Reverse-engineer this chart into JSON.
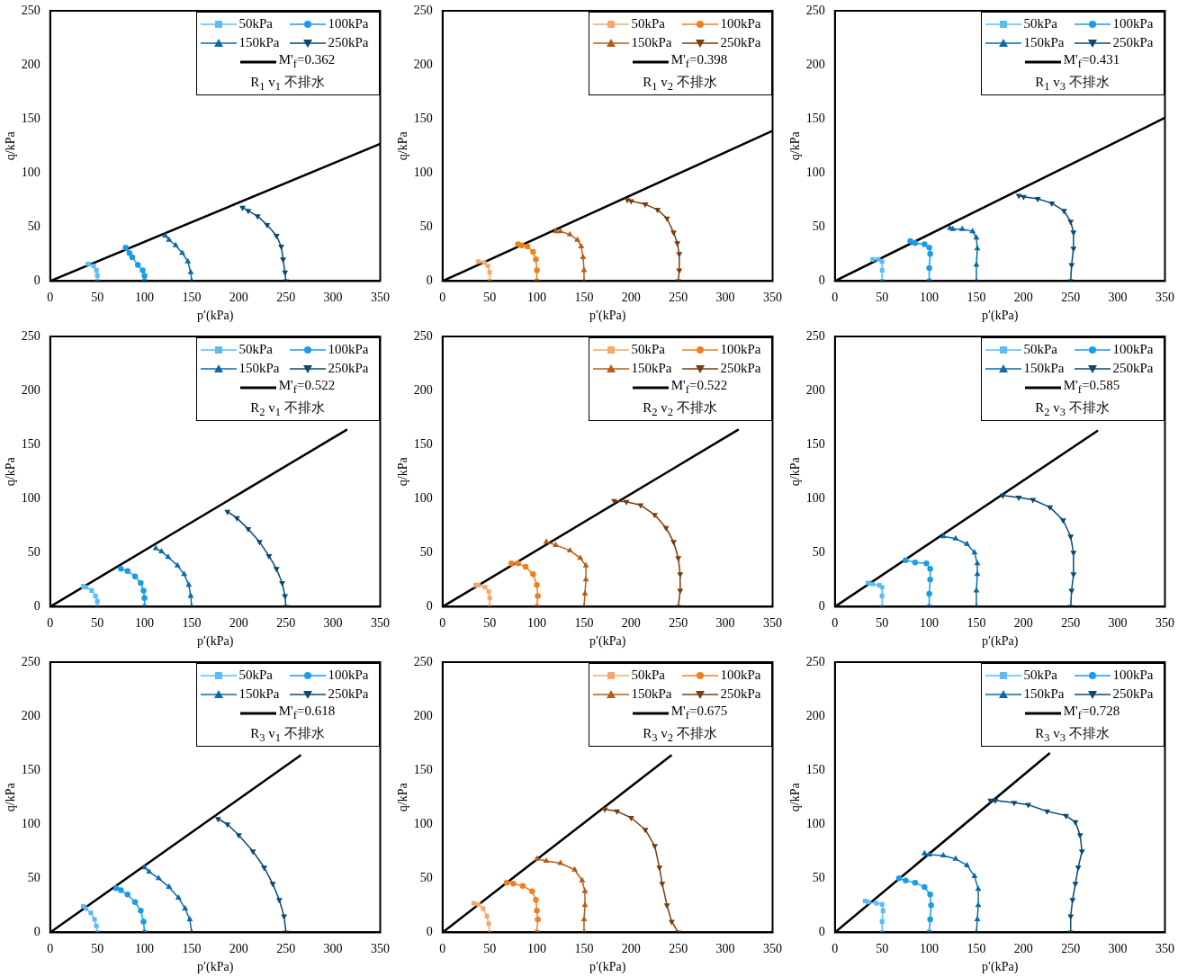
{
  "chart_data": [
    {
      "type": "line",
      "xlabel": "p′(kPa)",
      "ylabel": "q/kPa",
      "xlim": [
        0,
        350
      ],
      "xticks": [
        0,
        50,
        100,
        150,
        200,
        250,
        300,
        350
      ],
      "ylim": [
        0,
        250
      ],
      "yticks": [
        0,
        50,
        100,
        150,
        200,
        250
      ],
      "grid": false,
      "legend": "top right",
      "legend_title": "R$_{1}$  v$_{1}$  不排水",
      "series": [
        {
          "name": "50kPa",
          "color": "#5bbcf7",
          "marker": "square",
          "x": [
            50,
            50,
            49,
            46,
            40
          ],
          "values": [
            0,
            5,
            10,
            14,
            16
          ]
        },
        {
          "name": "100kPa",
          "color": "#1a9ce8",
          "marker": "circle",
          "x": [
            100,
            100,
            98,
            93,
            87,
            84,
            80
          ],
          "values": [
            0,
            5,
            10,
            15,
            22,
            26,
            31
          ]
        },
        {
          "name": "150kPa",
          "color": "#0b6aa8",
          "marker": "triangle",
          "x": [
            150,
            149,
            146,
            140,
            133,
            126,
            122
          ],
          "values": [
            0,
            8,
            18,
            26,
            33,
            38,
            42
          ]
        },
        {
          "name": "250kPa",
          "color": "#0a4a75",
          "marker": "triangle-down",
          "x": [
            250,
            249,
            247,
            245,
            240,
            230,
            220,
            210,
            204
          ],
          "values": [
            0,
            8,
            20,
            32,
            42,
            52,
            60,
            65,
            68
          ]
        },
        {
          "name": "M'$_{f}$=0.362",
          "color": "#000000",
          "marker": "none",
          "x": [
            0,
            350
          ],
          "values": [
            0,
            127
          ]
        }
      ]
    },
    {
      "type": "line",
      "xlabel": "p′(kPa)",
      "ylabel": "q/kPa",
      "xlim": [
        0,
        350
      ],
      "xticks": [
        0,
        50,
        100,
        150,
        200,
        250,
        300,
        350
      ],
      "ylim": [
        0,
        250
      ],
      "yticks": [
        0,
        50,
        100,
        150,
        200,
        250
      ],
      "grid": false,
      "legend": "top right",
      "legend_title": "R$_{1}$  v$_{2}$  不排水",
      "series": [
        {
          "name": "50kPa",
          "color": "#f5a86a",
          "marker": "square",
          "x": [
            50,
            50,
            48,
            44,
            38
          ],
          "values": [
            0,
            8,
            14,
            17,
            18
          ]
        },
        {
          "name": "100kPa",
          "color": "#ee8020",
          "marker": "circle",
          "x": [
            100,
            100,
            99,
            96,
            90,
            84,
            80
          ],
          "values": [
            0,
            10,
            20,
            27,
            32,
            33,
            34
          ]
        },
        {
          "name": "150kPa",
          "color": "#b85c14",
          "marker": "triangle",
          "x": [
            150,
            150,
            149,
            147,
            143,
            135,
            125,
            120
          ],
          "values": [
            0,
            10,
            22,
            32,
            38,
            43,
            46,
            46
          ]
        },
        {
          "name": "250kPa",
          "color": "#7a3d0e",
          "marker": "triangle-down",
          "x": [
            250,
            251,
            251,
            249,
            245,
            238,
            228,
            215,
            200,
            196
          ],
          "values": [
            0,
            10,
            25,
            35,
            45,
            58,
            66,
            71,
            74,
            75
          ]
        },
        {
          "name": "M'$_{f}$=0.398",
          "color": "#000000",
          "marker": "none",
          "x": [
            0,
            350
          ],
          "values": [
            0,
            139
          ]
        }
      ]
    },
    {
      "type": "line",
      "xlabel": "p′(kPa)",
      "ylabel": "q/kPa",
      "xlim": [
        0,
        350
      ],
      "xticks": [
        0,
        50,
        100,
        150,
        200,
        250,
        300,
        350
      ],
      "ylim": [
        0,
        250
      ],
      "yticks": [
        0,
        50,
        100,
        150,
        200,
        250
      ],
      "grid": false,
      "legend": "top right",
      "legend_title": "R$_{1}$  v$_{3}$  不排水",
      "series": [
        {
          "name": "50kPa",
          "color": "#5bbcf7",
          "marker": "square",
          "x": [
            50,
            50,
            50,
            46,
            40
          ],
          "values": [
            0,
            10,
            18,
            20,
            20
          ]
        },
        {
          "name": "100kPa",
          "color": "#1a9ce8",
          "marker": "circle",
          "x": [
            100,
            100,
            101,
            100,
            95,
            85,
            80
          ],
          "values": [
            0,
            12,
            25,
            31,
            34,
            35,
            37
          ]
        },
        {
          "name": "150kPa",
          "color": "#0b6aa8",
          "marker": "triangle",
          "x": [
            150,
            150,
            151,
            150,
            146,
            135,
            125,
            122
          ],
          "values": [
            0,
            15,
            30,
            40,
            46,
            48,
            48,
            49
          ]
        },
        {
          "name": "250kPa",
          "color": "#0a4a75",
          "marker": "triangle-down",
          "x": [
            250,
            251,
            253,
            253,
            250,
            243,
            230,
            215,
            200,
            195
          ],
          "values": [
            0,
            15,
            30,
            45,
            55,
            65,
            72,
            76,
            78,
            79
          ]
        },
        {
          "name": "M'$_{f}$=0.431",
          "color": "#000000",
          "marker": "none",
          "x": [
            0,
            350
          ],
          "values": [
            0,
            151
          ]
        }
      ]
    },
    {
      "type": "line",
      "xlabel": "p′(kPa)",
      "ylabel": "q/kPa",
      "xlim": [
        0,
        350
      ],
      "xticks": [
        0,
        50,
        100,
        150,
        200,
        250,
        300,
        350
      ],
      "ylim": [
        0,
        250
      ],
      "yticks": [
        0,
        50,
        100,
        150,
        200,
        250
      ],
      "grid": false,
      "legend": "top right",
      "legend_title": "R$_{2}$  v$_{1}$  不排水",
      "series": [
        {
          "name": "50kPa",
          "color": "#5bbcf7",
          "marker": "square",
          "x": [
            50,
            50,
            48,
            44,
            38,
            35
          ],
          "values": [
            0,
            5,
            10,
            15,
            18,
            19
          ]
        },
        {
          "name": "100kPa",
          "color": "#1a9ce8",
          "marker": "circle",
          "x": [
            100,
            100,
            99,
            96,
            90,
            82,
            75
          ],
          "values": [
            0,
            8,
            15,
            22,
            28,
            33,
            35
          ]
        },
        {
          "name": "150kPa",
          "color": "#0b6aa8",
          "marker": "triangle",
          "x": [
            150,
            149,
            147,
            142,
            135,
            125,
            118,
            112
          ],
          "values": [
            0,
            10,
            20,
            30,
            38,
            46,
            51,
            54
          ]
        },
        {
          "name": "250kPa",
          "color": "#0a4a75",
          "marker": "triangle-down",
          "x": [
            250,
            249,
            246,
            240,
            232,
            222,
            210,
            198,
            188
          ],
          "values": [
            0,
            10,
            22,
            35,
            47,
            60,
            72,
            82,
            88
          ]
        },
        {
          "name": "M'$_{f}$=0.522",
          "color": "#000000",
          "marker": "none",
          "x": [
            0,
            315
          ],
          "values": [
            0,
            164
          ]
        }
      ]
    },
    {
      "type": "line",
      "xlabel": "p′(kPa)",
      "ylabel": "q/kPa",
      "xlim": [
        0,
        350
      ],
      "xticks": [
        0,
        50,
        100,
        150,
        200,
        250,
        300,
        350
      ],
      "ylim": [
        0,
        250
      ],
      "yticks": [
        0,
        50,
        100,
        150,
        200,
        250
      ],
      "grid": false,
      "legend": "top right",
      "legend_title": "R$_{2}$  v$_{2}$  不排水",
      "series": [
        {
          "name": "50kPa",
          "color": "#f5a86a",
          "marker": "square",
          "x": [
            50,
            50,
            49,
            45,
            38,
            35
          ],
          "values": [
            0,
            8,
            14,
            18,
            20,
            20
          ]
        },
        {
          "name": "100kPa",
          "color": "#ee8020",
          "marker": "circle",
          "x": [
            100,
            101,
            100,
            96,
            88,
            80,
            73
          ],
          "values": [
            0,
            10,
            20,
            30,
            37,
            40,
            40
          ]
        },
        {
          "name": "150kPa",
          "color": "#b85c14",
          "marker": "triangle",
          "x": [
            150,
            151,
            152,
            152,
            146,
            135,
            120,
            110
          ],
          "values": [
            0,
            12,
            25,
            38,
            45,
            52,
            57,
            60
          ]
        },
        {
          "name": "250kPa",
          "color": "#7a3d0e",
          "marker": "triangle-down",
          "x": [
            250,
            252,
            252,
            250,
            245,
            237,
            225,
            210,
            195,
            182
          ],
          "values": [
            0,
            15,
            30,
            45,
            60,
            73,
            85,
            94,
            97,
            98
          ]
        },
        {
          "name": "M'$_{f}$=0.522",
          "color": "#000000",
          "marker": "none",
          "x": [
            0,
            314
          ],
          "values": [
            0,
            164
          ]
        }
      ]
    },
    {
      "type": "line",
      "xlabel": "p′(kPa)",
      "ylabel": "q/kPa",
      "xlim": [
        0,
        350
      ],
      "xticks": [
        0,
        50,
        100,
        150,
        200,
        250,
        300,
        350
      ],
      "ylim": [
        0,
        250
      ],
      "yticks": [
        0,
        50,
        100,
        150,
        200,
        250
      ],
      "grid": false,
      "legend": "top right",
      "legend_title": "R$_{2}$  v$_{3}$  不排水",
      "series": [
        {
          "name": "50kPa",
          "color": "#5bbcf7",
          "marker": "square",
          "x": [
            50,
            50,
            50,
            47,
            40,
            35
          ],
          "values": [
            0,
            10,
            18,
            20,
            21,
            22
          ]
        },
        {
          "name": "100kPa",
          "color": "#1a9ce8",
          "marker": "circle",
          "x": [
            100,
            100,
            101,
            101,
            97,
            85,
            75
          ],
          "values": [
            0,
            12,
            25,
            35,
            40,
            41,
            43
          ]
        },
        {
          "name": "150kPa",
          "color": "#0b6aa8",
          "marker": "triangle",
          "x": [
            150,
            150,
            151,
            151,
            148,
            140,
            128,
            115
          ],
          "values": [
            0,
            15,
            30,
            40,
            50,
            58,
            63,
            65
          ]
        },
        {
          "name": "250kPa",
          "color": "#0a4a75",
          "marker": "triangle-down",
          "x": [
            250,
            251,
            253,
            253,
            250,
            242,
            228,
            210,
            195,
            178
          ],
          "values": [
            0,
            15,
            30,
            50,
            65,
            80,
            92,
            99,
            101,
            103
          ]
        },
        {
          "name": "M'$_{f}$=0.585",
          "color": "#000000",
          "marker": "none",
          "x": [
            0,
            279
          ],
          "values": [
            0,
            163
          ]
        }
      ]
    },
    {
      "type": "line",
      "xlabel": "p′(kPa)",
      "ylabel": "q/kPa",
      "xlim": [
        0,
        350
      ],
      "xticks": [
        0,
        50,
        100,
        150,
        200,
        250,
        300,
        350
      ],
      "ylim": [
        0,
        250
      ],
      "yticks": [
        0,
        50,
        100,
        150,
        200,
        250
      ],
      "grid": false,
      "legend": "top right",
      "legend_title": "R$_{3}$  v$_{1}$  不排水",
      "series": [
        {
          "name": "50kPa",
          "color": "#5bbcf7",
          "marker": "square",
          "x": [
            50,
            49,
            47,
            43,
            38,
            35
          ],
          "values": [
            0,
            6,
            12,
            18,
            22,
            24
          ]
        },
        {
          "name": "100kPa",
          "color": "#1a9ce8",
          "marker": "circle",
          "x": [
            100,
            99,
            96,
            90,
            82,
            75,
            70
          ],
          "values": [
            0,
            10,
            20,
            28,
            35,
            39,
            41
          ]
        },
        {
          "name": "150kPa",
          "color": "#0b6aa8",
          "marker": "triangle",
          "x": [
            150,
            148,
            143,
            136,
            126,
            115,
            105,
            100
          ],
          "values": [
            0,
            12,
            22,
            32,
            42,
            50,
            56,
            60
          ]
        },
        {
          "name": "250kPa",
          "color": "#0a4a75",
          "marker": "triangle-down",
          "x": [
            250,
            248,
            243,
            236,
            227,
            215,
            200,
            188,
            178
          ],
          "values": [
            0,
            15,
            30,
            45,
            60,
            75,
            90,
            100,
            105
          ]
        },
        {
          "name": "M'$_{f}$=0.618",
          "color": "#000000",
          "marker": "none",
          "x": [
            0,
            266
          ],
          "values": [
            0,
            164
          ]
        }
      ]
    },
    {
      "type": "line",
      "xlabel": "p′(kPa)",
      "ylabel": "q/kPa",
      "xlim": [
        0,
        350
      ],
      "xticks": [
        0,
        50,
        100,
        150,
        200,
        250,
        300,
        350
      ],
      "ylim": [
        0,
        250
      ],
      "yticks": [
        0,
        50,
        100,
        150,
        200,
        250
      ],
      "grid": false,
      "legend": "top right",
      "legend_title": "R$_{3}$  v$_{2}$  不排水",
      "series": [
        {
          "name": "50kPa",
          "color": "#f5a86a",
          "marker": "square",
          "x": [
            50,
            49,
            47,
            43,
            38,
            33
          ],
          "values": [
            0,
            8,
            15,
            22,
            26,
            27
          ]
        },
        {
          "name": "100kPa",
          "color": "#ee8020",
          "marker": "circle",
          "x": [
            100,
            101,
            100,
            99,
            95,
            85,
            75,
            68
          ],
          "values": [
            0,
            12,
            20,
            30,
            38,
            43,
            45,
            46
          ]
        },
        {
          "name": "150kPa",
          "color": "#b85c14",
          "marker": "triangle",
          "x": [
            150,
            150,
            151,
            151,
            148,
            140,
            125,
            110,
            100
          ],
          "values": [
            0,
            12,
            25,
            38,
            48,
            58,
            64,
            66,
            68
          ]
        },
        {
          "name": "250kPa",
          "color": "#7a3d0e",
          "marker": "triangle-down",
          "x": [
            250,
            243,
            238,
            233,
            230,
            225,
            215,
            200,
            185,
            172
          ],
          "values": [
            0,
            10,
            25,
            45,
            60,
            80,
            95,
            106,
            112,
            114
          ]
        },
        {
          "name": "M'$_{f}$=0.675",
          "color": "#000000",
          "marker": "none",
          "x": [
            0,
            243
          ],
          "values": [
            0,
            164
          ]
        }
      ]
    },
    {
      "type": "line",
      "xlabel": "p′(kPa)",
      "ylabel": "q/kPa",
      "xlim": [
        0,
        350
      ],
      "xticks": [
        0,
        50,
        100,
        150,
        200,
        250,
        300,
        350
      ],
      "ylim": [
        0,
        250
      ],
      "yticks": [
        0,
        50,
        100,
        150,
        200,
        250
      ],
      "grid": false,
      "legend": "top right",
      "legend_title": "R$_{3}$  v$_{3}$  不排水",
      "series": [
        {
          "name": "50kPa",
          "color": "#5bbcf7",
          "marker": "square",
          "x": [
            50,
            50,
            51,
            50,
            44,
            35,
            32
          ],
          "values": [
            0,
            10,
            20,
            26,
            27,
            28,
            29
          ]
        },
        {
          "name": "100kPa",
          "color": "#1a9ce8",
          "marker": "circle",
          "x": [
            100,
            101,
            102,
            101,
            95,
            85,
            75,
            68
          ],
          "values": [
            0,
            12,
            25,
            35,
            42,
            46,
            48,
            50
          ]
        },
        {
          "name": "150kPa",
          "color": "#0b6aa8",
          "marker": "triangle",
          "x": [
            150,
            151,
            152,
            152,
            148,
            140,
            128,
            115,
            100,
            95
          ],
          "values": [
            0,
            12,
            25,
            40,
            52,
            62,
            68,
            71,
            72,
            73
          ]
        },
        {
          "name": "250kPa",
          "color": "#0a4a75",
          "marker": "triangle-down",
          "x": [
            250,
            250,
            252,
            255,
            258,
            262,
            260,
            255,
            245,
            225,
            205,
            190,
            170,
            165
          ],
          "values": [
            0,
            15,
            30,
            45,
            60,
            75,
            90,
            102,
            108,
            112,
            118,
            120,
            122,
            122
          ]
        },
        {
          "name": "M'$_{f}$=0.728",
          "color": "#000000",
          "marker": "none",
          "x": [
            0,
            228
          ],
          "values": [
            0,
            166
          ]
        }
      ]
    }
  ]
}
